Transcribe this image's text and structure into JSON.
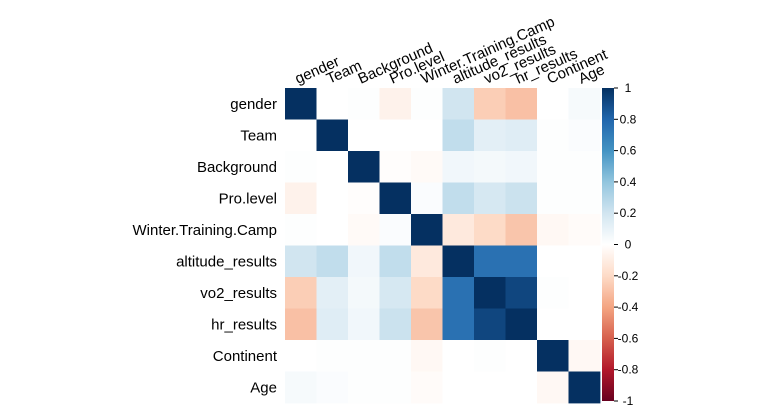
{
  "chart_data": {
    "type": "heatmap",
    "variables": [
      "gender",
      "Team",
      "Background",
      "Pro.level",
      "Winter.Training.Camp",
      "altitude_results",
      "vo2_results",
      "hr_results",
      "Continent",
      "Age"
    ],
    "matrix": [
      [
        1.0,
        0.0,
        0.01,
        -0.07,
        0.01,
        0.2,
        -0.25,
        -0.3,
        0.0,
        0.04
      ],
      [
        0.0,
        1.0,
        0.0,
        0.0,
        0.0,
        0.25,
        0.12,
        0.14,
        0.01,
        0.02
      ],
      [
        0.01,
        0.0,
        1.0,
        -0.01,
        -0.03,
        0.06,
        0.05,
        0.06,
        0.01,
        0.01
      ],
      [
        -0.07,
        0.0,
        -0.01,
        1.0,
        0.02,
        0.25,
        0.18,
        0.22,
        0.01,
        0.01
      ],
      [
        0.01,
        0.0,
        -0.03,
        0.02,
        1.0,
        -0.12,
        -0.2,
        -0.28,
        -0.04,
        -0.02
      ],
      [
        0.2,
        0.25,
        0.06,
        0.25,
        -0.12,
        1.0,
        0.75,
        0.75,
        0.0,
        0.0
      ],
      [
        -0.25,
        0.12,
        0.05,
        0.18,
        -0.2,
        0.75,
        1.0,
        0.92,
        0.01,
        0.0
      ],
      [
        -0.3,
        0.14,
        0.06,
        0.22,
        -0.28,
        0.75,
        0.92,
        1.0,
        0.0,
        0.0
      ],
      [
        0.0,
        0.01,
        0.01,
        0.01,
        -0.04,
        0.0,
        0.01,
        0.0,
        1.0,
        -0.04
      ],
      [
        0.04,
        0.02,
        0.01,
        0.01,
        -0.02,
        0.0,
        0.0,
        0.0,
        -0.04,
        1.0
      ]
    ],
    "colorbar": {
      "range": [
        -1,
        1
      ],
      "ticks": [
        "1",
        "0.8",
        "0.6",
        "0.4",
        "0.2",
        "0",
        "-0.2",
        "-0.4",
        "-0.6",
        "-0.8",
        "-1"
      ]
    },
    "colors": {
      "positive_max": "#053061",
      "neutral": "#ffffff",
      "negative_max": "#67001f"
    },
    "grid": false,
    "legend_position": "right"
  }
}
